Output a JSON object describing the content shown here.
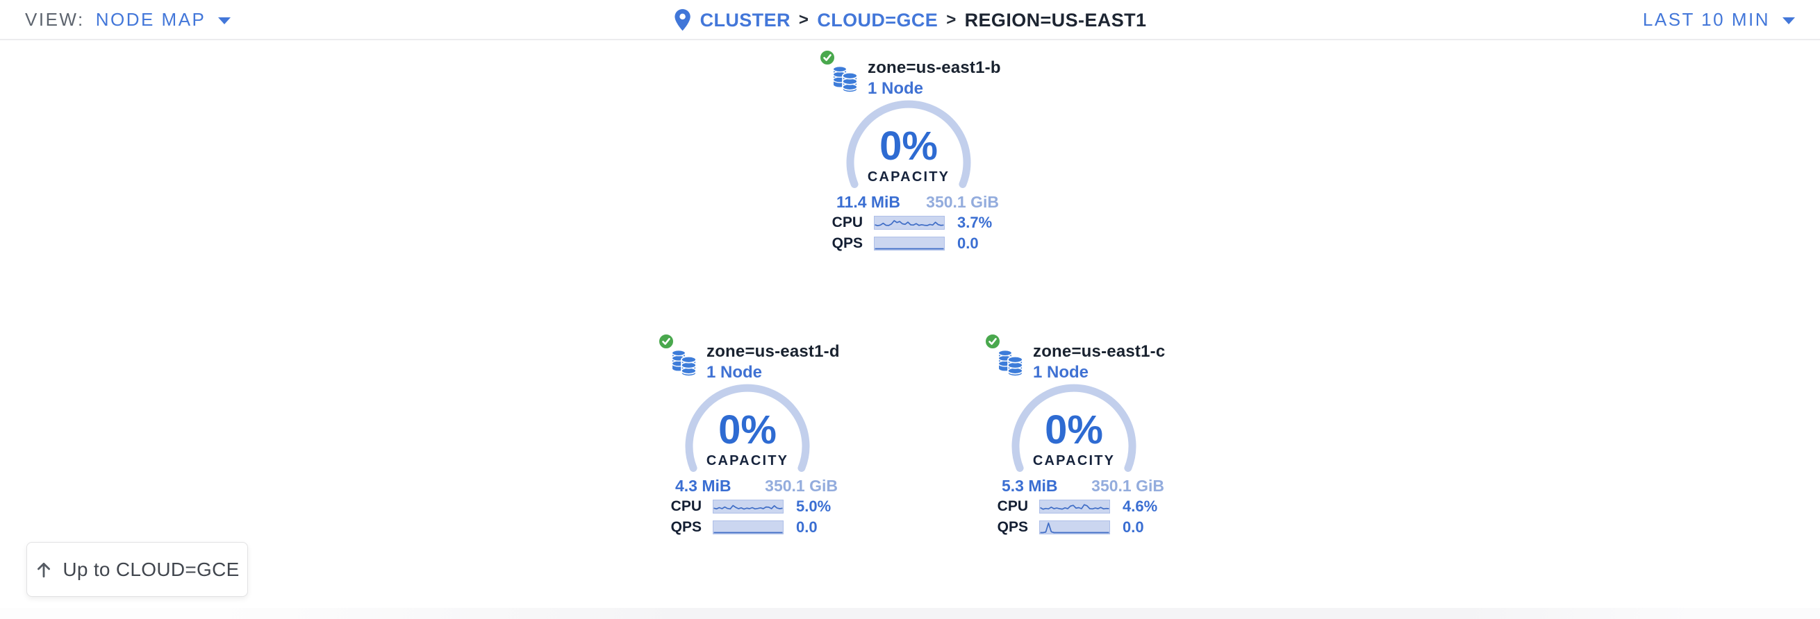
{
  "header": {
    "view_label": "VIEW:",
    "view_value": "NODE MAP",
    "breadcrumb": {
      "separator": ">",
      "items": [
        {
          "label": "CLUSTER"
        },
        {
          "label": "CLOUD=GCE"
        },
        {
          "label": "REGION=US-EAST1"
        }
      ]
    },
    "time_range": "LAST 10 MIN"
  },
  "zones": [
    {
      "name": "zone=us-east1-b",
      "node_count": "1 Node",
      "status": "healthy",
      "capacity_pct": "0%",
      "capacity_label": "CAPACITY",
      "used": "11.4 MiB",
      "total": "350.1 GiB",
      "cpu_label": "CPU",
      "cpu_value": "3.7%",
      "qps_label": "QPS",
      "qps_value": "0.0",
      "cpu_spark": [
        0.3,
        0.22,
        0.28,
        0.45,
        0.26,
        0.24,
        0.38,
        0.7,
        0.52,
        0.62,
        0.4,
        0.35,
        0.56,
        0.3,
        0.28,
        0.42,
        0.25,
        0.31,
        0.26,
        0.24,
        0.34,
        0.28,
        0.55,
        0.32,
        0.25,
        0.28
      ],
      "qps_spark": [
        0,
        0,
        0,
        0,
        0,
        0,
        0,
        0,
        0,
        0,
        0,
        0,
        0,
        0,
        0,
        0,
        0,
        0,
        0,
        0,
        0,
        0,
        0,
        0,
        0,
        0
      ]
    },
    {
      "name": "zone=us-east1-d",
      "node_count": "1 Node",
      "status": "healthy",
      "capacity_pct": "0%",
      "capacity_label": "CAPACITY",
      "used": "4.3 MiB",
      "total": "350.1 GiB",
      "cpu_label": "CPU",
      "cpu_value": "5.0%",
      "qps_label": "QPS",
      "qps_value": "0.0",
      "cpu_spark": [
        0.35,
        0.28,
        0.4,
        0.3,
        0.46,
        0.32,
        0.28,
        0.6,
        0.42,
        0.3,
        0.38,
        0.26,
        0.35,
        0.3,
        0.4,
        0.28,
        0.32,
        0.38,
        0.3,
        0.46,
        0.44,
        0.3,
        0.58,
        0.36,
        0.3,
        0.34
      ],
      "qps_spark": [
        0,
        0,
        0,
        0,
        0,
        0,
        0,
        0,
        0,
        0,
        0,
        0,
        0,
        0,
        0,
        0,
        0,
        0,
        0,
        0,
        0,
        0,
        0,
        0,
        0,
        0
      ]
    },
    {
      "name": "zone=us-east1-c",
      "node_count": "1 Node",
      "status": "healthy",
      "capacity_pct": "0%",
      "capacity_label": "CAPACITY",
      "used": "5.3 MiB",
      "total": "350.1 GiB",
      "cpu_label": "CPU",
      "cpu_value": "4.6%",
      "qps_label": "QPS",
      "qps_value": "0.0",
      "cpu_spark": [
        0.4,
        0.25,
        0.32,
        0.28,
        0.44,
        0.3,
        0.36,
        0.3,
        0.26,
        0.38,
        0.3,
        0.55,
        0.62,
        0.35,
        0.4,
        0.3,
        0.68,
        0.58,
        0.3,
        0.28,
        0.36,
        0.3,
        0.42,
        0.28,
        0.32,
        0.3
      ],
      "qps_spark": [
        0,
        0,
        0.05,
        0.92,
        0.08,
        0,
        0,
        0,
        0,
        0,
        0,
        0,
        0,
        0,
        0,
        0,
        0,
        0,
        0,
        0,
        0,
        0,
        0,
        0,
        0,
        0
      ]
    }
  ],
  "back_button": {
    "icon": "arrow-up",
    "label": "Up to CLOUD=GCE"
  },
  "colors": {
    "accent_blue": "#4377d9",
    "value_blue": "#2e6bd2",
    "light_blue": "#93acdd",
    "gauge_arc": "#c2cfec",
    "spark_bg": "#cbd6f0",
    "spark_line": "#3f6dc6",
    "healthy_green": "#49a84d",
    "dark_text": "#1a2433",
    "muted_gray": "#5d646e"
  }
}
